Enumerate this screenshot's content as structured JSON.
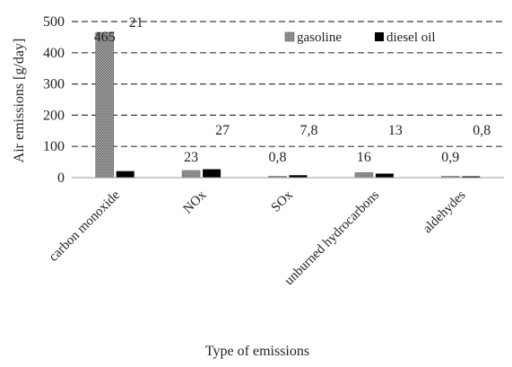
{
  "chart_data": {
    "type": "bar",
    "xlabel": "Type of emissions",
    "ylabel": "Air emissions [g/day]",
    "ylim": [
      0,
      500
    ],
    "yticks": [
      "0",
      "100",
      "200",
      "300",
      "400",
      "500"
    ],
    "grid": true,
    "legend_position": "top-right",
    "categories": [
      "carbon monoxide",
      "NOx",
      "SOx",
      "unburned hydrocarbons",
      "aldehydes"
    ],
    "series": [
      {
        "name": "gasoline",
        "values": [
          465,
          23,
          0.8,
          16,
          0.9
        ],
        "labels": [
          "465",
          "23",
          "0,8",
          "16",
          "0,9"
        ],
        "color": "#8c8c8c",
        "pattern": "dotted-gray"
      },
      {
        "name": "diesel oil",
        "values": [
          21,
          27,
          7.8,
          13,
          0.8
        ],
        "labels": [
          "21",
          "27",
          "7,8",
          "13",
          "0,8"
        ],
        "color": "#000000"
      }
    ]
  }
}
